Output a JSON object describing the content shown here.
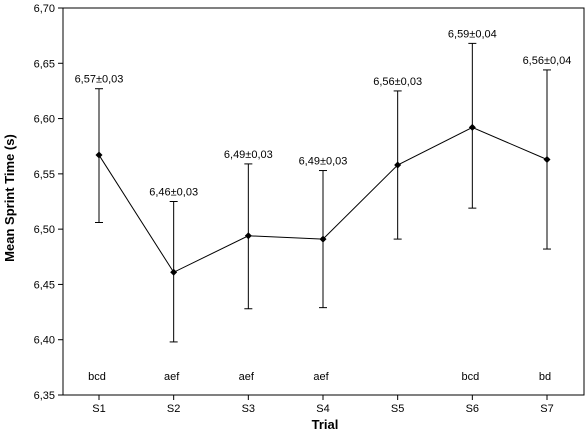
{
  "chart_data": {
    "type": "line",
    "title": "",
    "xlabel": "Trial",
    "ylabel": "Mean Sprint Time (s)",
    "categories": [
      "S1",
      "S2",
      "S3",
      "S4",
      "S5",
      "S6",
      "S7"
    ],
    "series": [
      {
        "values": [
          6.567,
          6.461,
          6.494,
          6.491,
          6.558,
          6.592,
          6.563
        ],
        "error_upper": [
          6.627,
          6.525,
          6.559,
          6.553,
          6.625,
          6.668,
          6.644
        ],
        "error_lower": [
          6.506,
          6.398,
          6.428,
          6.429,
          6.491,
          6.519,
          6.482
        ]
      }
    ],
    "value_labels": [
      "6,57±0,03",
      "6,46±0,03",
      "6,49±0,03",
      "6,49±0,03",
      "6,56±0,03",
      "6,59±0,04",
      "6,56±0,04"
    ],
    "letter_labels": [
      "bcd",
      "aef",
      "aef",
      "aef",
      "",
      "bcd",
      "bd"
    ],
    "ylim": [
      6.35,
      6.7
    ],
    "yticks": [
      "6,35",
      "6,40",
      "6,45",
      "6,50",
      "6,55",
      "6,60",
      "6,65",
      "6,70"
    ],
    "ytick_values": [
      6.35,
      6.4,
      6.45,
      6.5,
      6.55,
      6.6,
      6.65,
      6.7
    ],
    "grid": false,
    "colors": {
      "line": "#000000",
      "marker": "#000000",
      "axis": "#000000",
      "background": "#ffffff"
    }
  }
}
